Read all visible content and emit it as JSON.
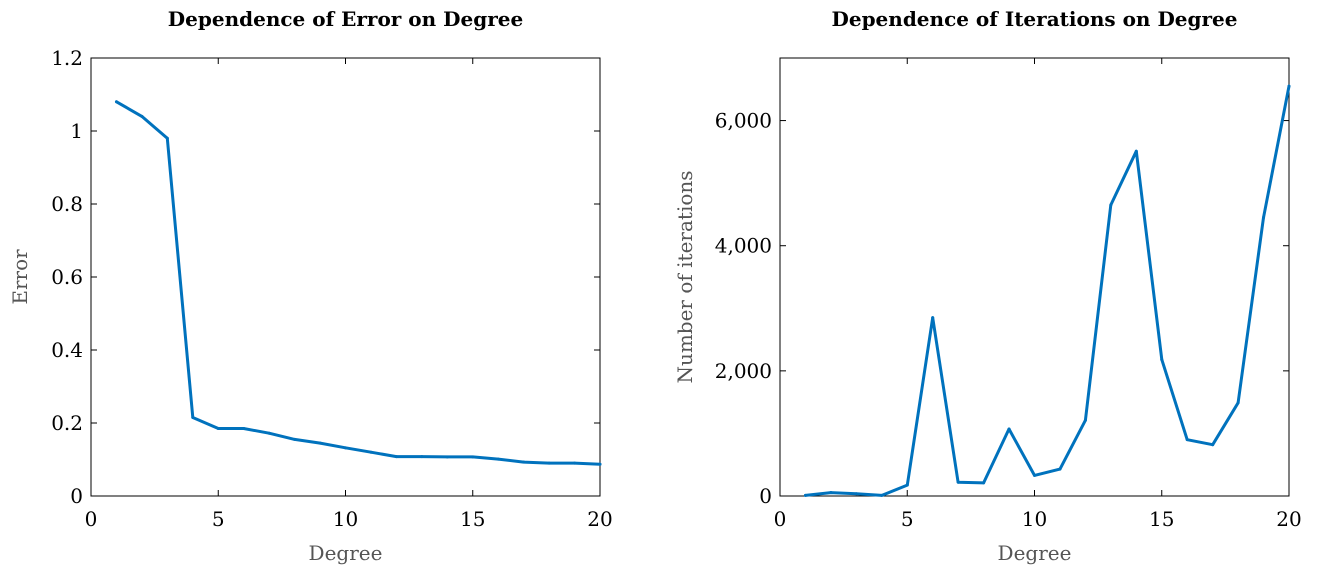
{
  "chart_data": [
    {
      "type": "line",
      "title": "Dependence of Error on Degree",
      "xlabel": "Degree",
      "ylabel": "Error",
      "xlim": [
        0,
        20
      ],
      "ylim": [
        0,
        1.2
      ],
      "xticks": [
        0,
        5,
        10,
        15,
        20
      ],
      "xtick_labels": [
        "0",
        "5",
        "10",
        "15",
        "20"
      ],
      "yticks": [
        0,
        0.2,
        0.4,
        0.6,
        0.8,
        1.0,
        1.2
      ],
      "ytick_labels": [
        "0",
        "0.2",
        "0.4",
        "0.6",
        "0.8",
        "1",
        "1.2"
      ],
      "grid": false,
      "color": "#0072bd",
      "series": [
        {
          "x": [
            1,
            2,
            3,
            4,
            5,
            6,
            7,
            8,
            9,
            10,
            11,
            12,
            13,
            14,
            15,
            16,
            17,
            18,
            19,
            20
          ],
          "values": [
            1.08,
            1.04,
            0.98,
            0.215,
            0.185,
            0.185,
            0.172,
            0.155,
            0.145,
            0.132,
            0.12,
            0.108,
            0.108,
            0.107,
            0.107,
            0.101,
            0.093,
            0.09,
            0.09,
            0.087
          ]
        }
      ]
    },
    {
      "type": "line",
      "title": "Dependence of Iterations on Degree",
      "xlabel": "Degree",
      "ylabel": "Number of iterations",
      "xlim": [
        0,
        20
      ],
      "ylim": [
        0,
        7000
      ],
      "xticks": [
        0,
        5,
        10,
        15,
        20
      ],
      "xtick_labels": [
        "0",
        "5",
        "10",
        "15",
        "20"
      ],
      "yticks": [
        0,
        2000,
        4000,
        6000
      ],
      "ytick_labels": [
        "0",
        "2,000",
        "4,000",
        "6,000"
      ],
      "grid": false,
      "color": "#0072bd",
      "series": [
        {
          "x": [
            1,
            2,
            3,
            4,
            5,
            6,
            7,
            8,
            9,
            10,
            11,
            12,
            13,
            14,
            15,
            16,
            17,
            18,
            19,
            20
          ],
          "values": [
            10,
            55,
            35,
            10,
            175,
            2850,
            220,
            210,
            1070,
            330,
            430,
            1210,
            4650,
            5510,
            2180,
            900,
            820,
            1490,
            4450,
            6550
          ]
        }
      ]
    }
  ]
}
